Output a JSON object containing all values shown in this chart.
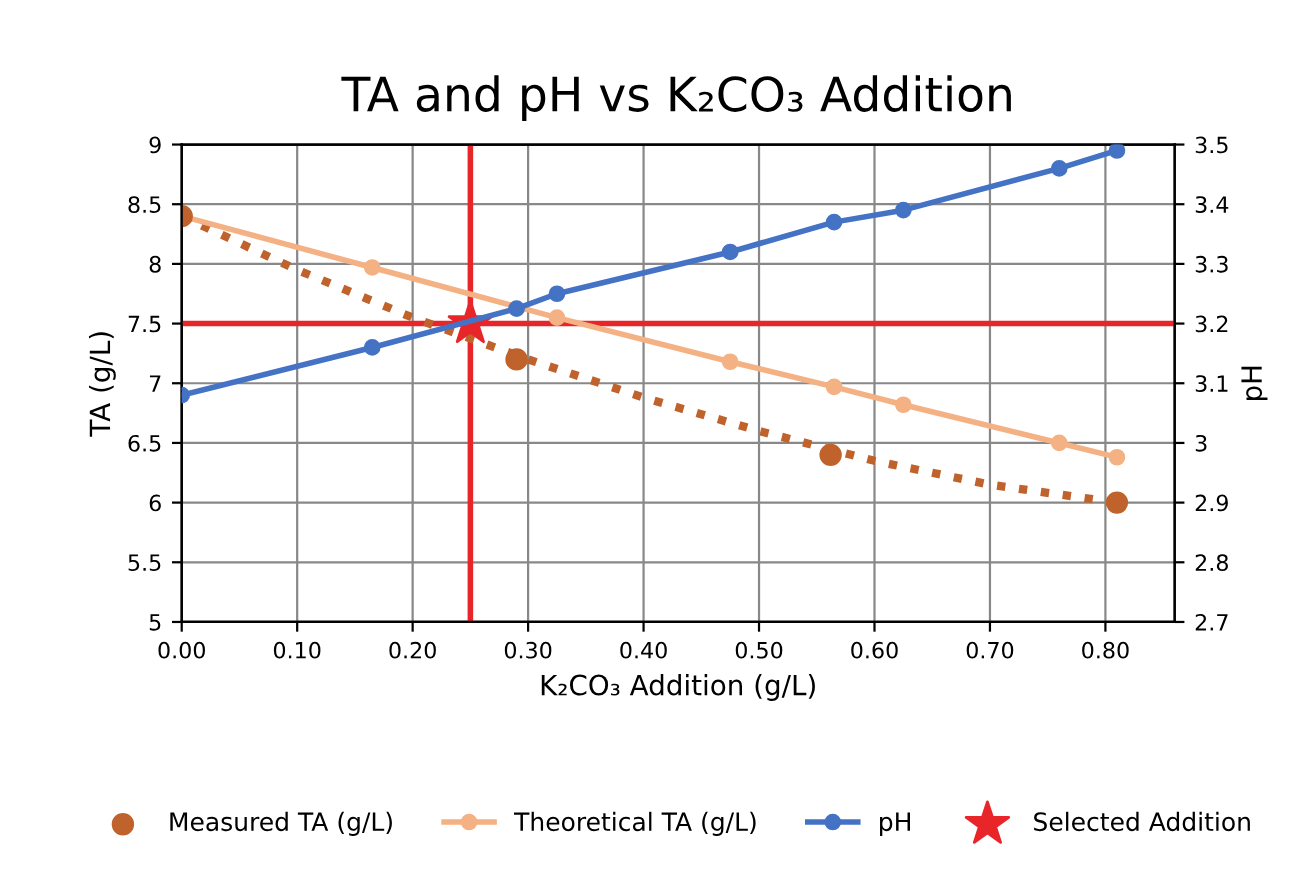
{
  "chart_data": {
    "type": "line",
    "title": "TA and pH vs K₂CO₃ Addition",
    "xlabel": "K₂CO₃ Addition (g/L)",
    "ylabel": "TA (g/L)",
    "y2label": "pH",
    "series": [
      {
        "name": "Measured TA (g/L)",
        "type": "scatter",
        "color": "#c0622b",
        "x": [
          0,
          0.29,
          0.562,
          0.81
        ],
        "values": [
          8.4,
          7.2,
          6.4,
          6.0
        ]
      },
      {
        "color": "#c0622b",
        "line_style": "dotted",
        "marker": "none",
        "x": [
          0,
          0.1,
          0.2,
          0.3,
          0.4,
          0.5,
          0.6,
          0.7,
          0.81
        ],
        "values": [
          8.4,
          7.95,
          7.55,
          7.2,
          6.88,
          6.6,
          6.35,
          6.15,
          6.0
        ]
      },
      {
        "name": "Theoretical TA (g/L)",
        "color": "#f4b183",
        "marker": "circle",
        "x": [
          0,
          0.165,
          0.325,
          0.475,
          0.565,
          0.625,
          0.76,
          0.81
        ],
        "values": [
          8.4,
          7.97,
          7.55,
          7.18,
          6.97,
          6.82,
          6.5,
          6.38
        ]
      },
      {
        "name": "pH",
        "axis": "y2",
        "color": "#4472c4",
        "marker": "circle",
        "x": [
          0,
          0.165,
          0.29,
          0.325,
          0.475,
          0.565,
          0.625,
          0.76,
          0.81
        ],
        "values": [
          3.08,
          3.16,
          3.225,
          3.25,
          3.32,
          3.37,
          3.39,
          3.46,
          3.49
        ]
      },
      {
        "name": "Selected Addition",
        "type": "scatter",
        "marker": "star",
        "color": "#e8262a",
        "x": [
          0.25
        ],
        "values": [
          7.5
        ]
      }
    ],
    "ref_lines": [
      {
        "axis": "y",
        "value": 7.5,
        "color": "#e8262a"
      },
      {
        "axis": "x",
        "value": 0.25,
        "color": "#e8262a"
      }
    ],
    "xlim": [
      0,
      0.86
    ],
    "xticks": [
      {
        "value": 0,
        "label": "0.00"
      },
      {
        "value": 0.1,
        "label": "0.10"
      },
      {
        "value": 0.2,
        "label": "0.20"
      },
      {
        "value": 0.3,
        "label": "0.30"
      },
      {
        "value": 0.4,
        "label": "0.40"
      },
      {
        "value": 0.5,
        "label": "0.50"
      },
      {
        "value": 0.6,
        "label": "0.60"
      },
      {
        "value": 0.7,
        "label": "0.70"
      },
      {
        "value": 0.8,
        "label": "0.80"
      }
    ],
    "ylim": [
      5,
      9
    ],
    "yticks": [
      5,
      5.5,
      6,
      6.5,
      7,
      7.5,
      8,
      8.5,
      9
    ],
    "y2lim": [
      2.7,
      3.5
    ],
    "y2ticks": [
      2.7,
      2.8,
      2.9,
      3,
      3.1,
      3.2,
      3.3,
      3.4,
      3.5
    ],
    "grid": true,
    "legend": "bottom"
  }
}
